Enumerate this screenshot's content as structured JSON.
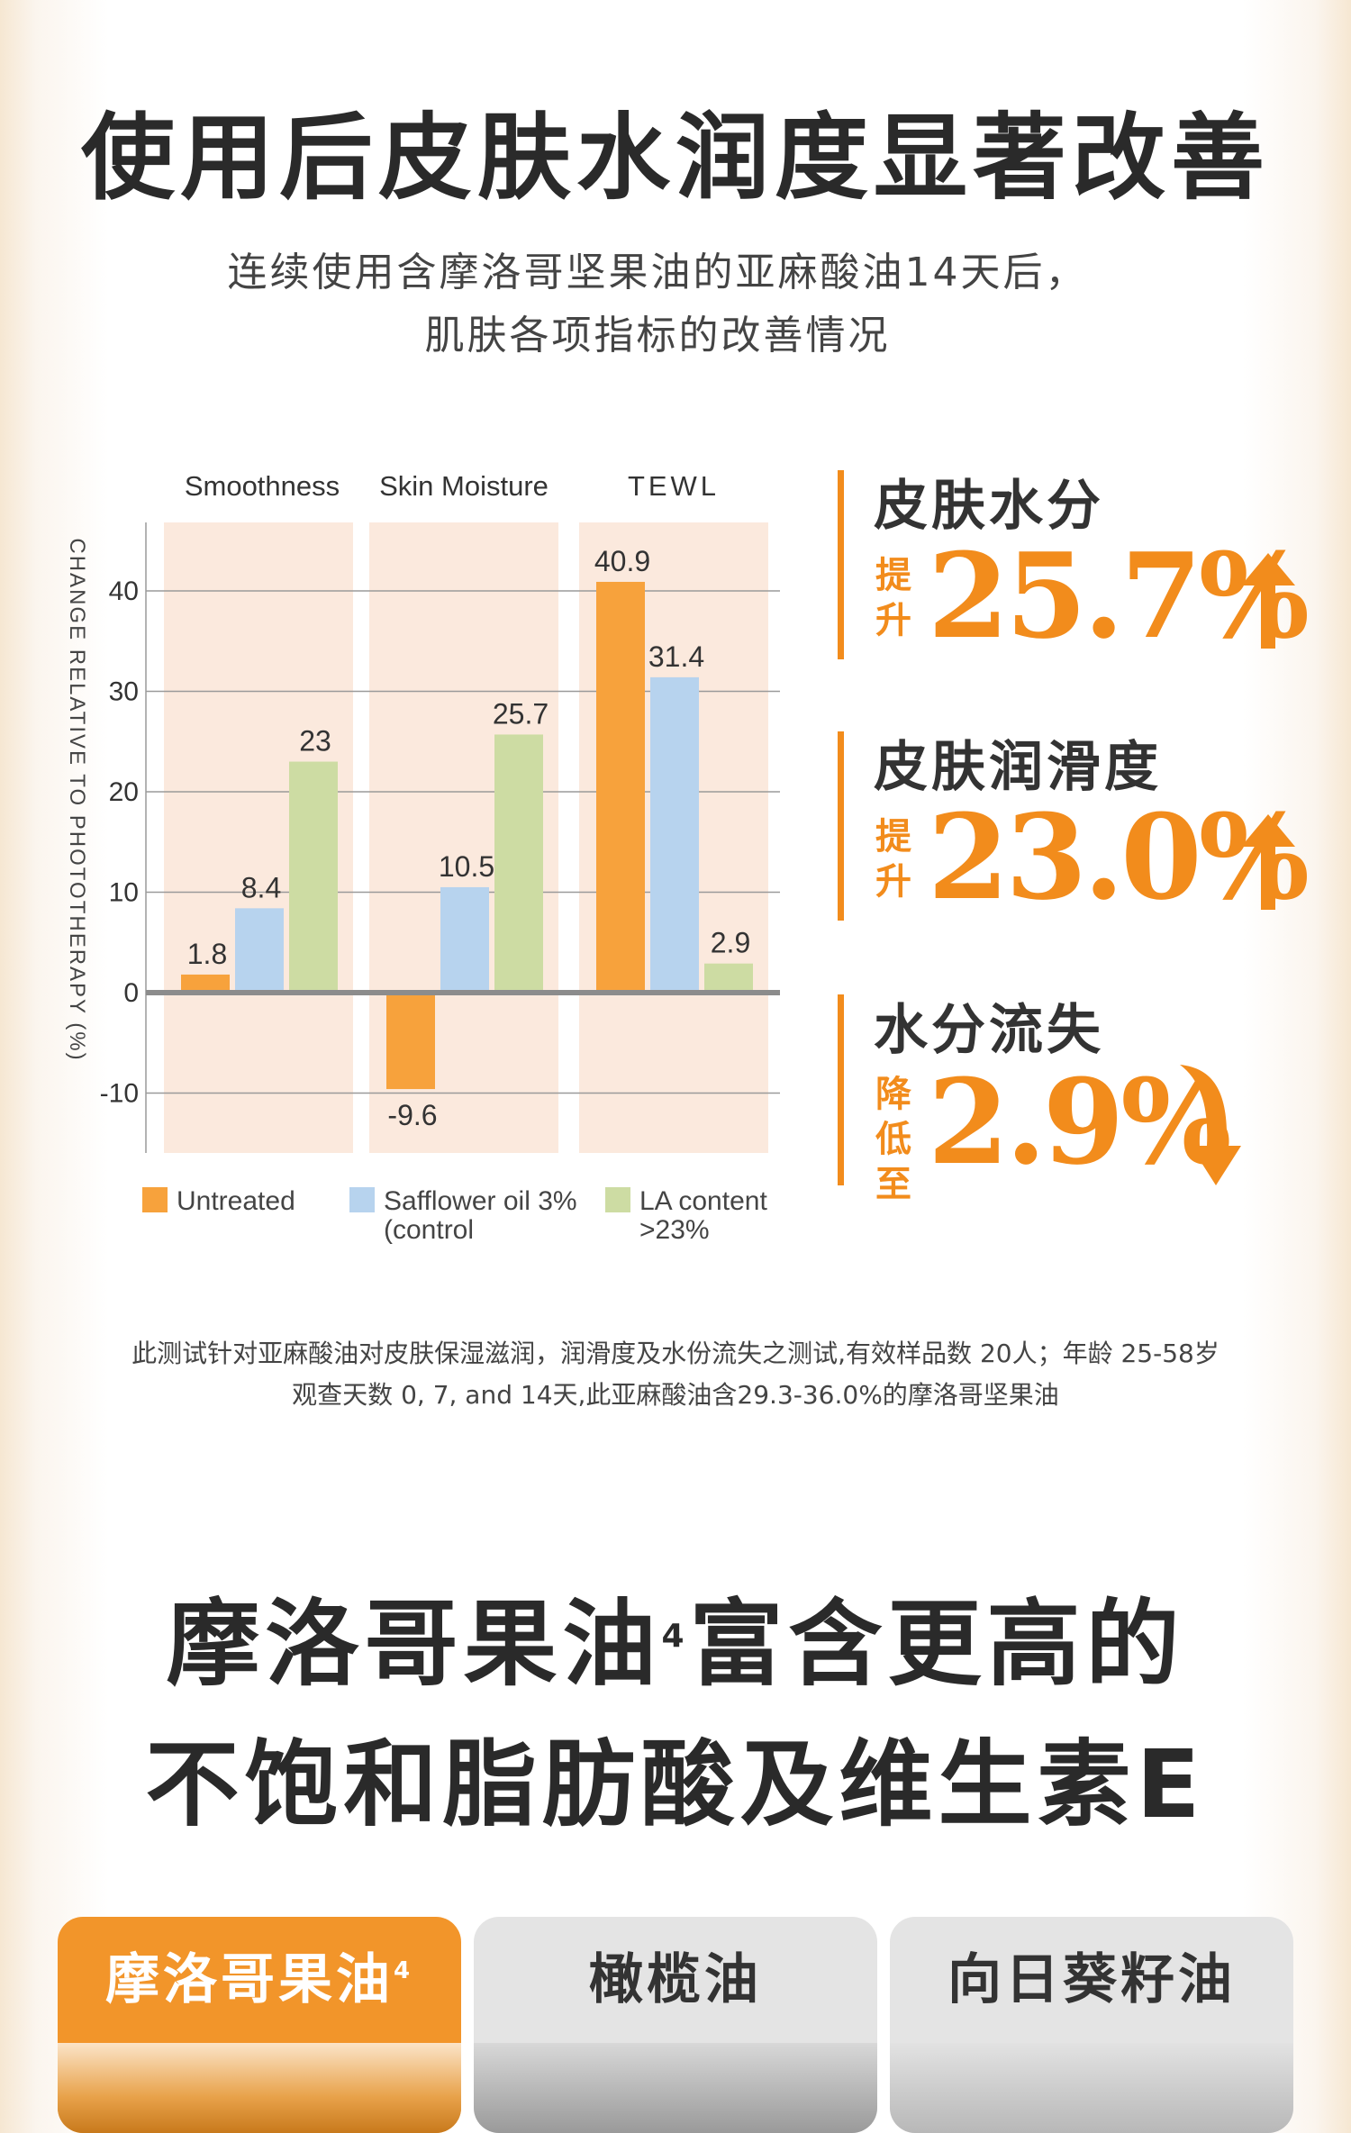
{
  "header": {
    "title": "使用后皮肤水润度显著改善",
    "subtitle_line1": "连续使用含摩洛哥坚果油的亚麻酸油14天后，",
    "subtitle_line2": "肌肤各项指标的改善情况"
  },
  "chart_data": {
    "type": "bar",
    "ylabel": "CHANGE RELATIVE TO PHOTOTHERAPY (%)",
    "categories": [
      "Smoothness",
      "Skin Moisture",
      "TEWL"
    ],
    "series": [
      {
        "name": "Untreated",
        "values": [
          1.8,
          -9.6,
          40.9
        ],
        "color": "#f7a23c"
      },
      {
        "name": "Safflower oil 3% (control",
        "values": [
          8.4,
          10.5,
          31.4
        ],
        "color": "#b7d3ee"
      },
      {
        "name": "LA content >23%",
        "values": [
          23,
          25.7,
          2.9
        ],
        "color": "#cddca3"
      }
    ],
    "value_labels": [
      [
        "1.8",
        "8.4",
        "23"
      ],
      [
        "-9.6",
        "10.5",
        "25.7"
      ],
      [
        "40.9",
        "31.4",
        "2.9"
      ]
    ],
    "yticks": [
      40,
      30,
      20,
      10,
      0,
      -10
    ],
    "ylim": [
      -15,
      46
    ],
    "legend": [
      {
        "line1": "Untreated",
        "line2": ""
      },
      {
        "line1": "Safflower oil 3%",
        "line2": "(control"
      },
      {
        "line1": "LA content",
        "line2": ">23%"
      }
    ],
    "legend_position": "bottom",
    "grid": true
  },
  "stats": [
    {
      "label": "皮肤水分",
      "verb": "提升",
      "value": "25.7%",
      "direction": "up"
    },
    {
      "label": "皮肤润滑度",
      "verb": "提升",
      "value": "23.0%",
      "direction": "up"
    },
    {
      "label": "水分流失",
      "verb": "降低至",
      "value": "2.9%",
      "direction": "down"
    }
  ],
  "footnote": {
    "line1": "此测试针对亚麻酸油对皮肤保湿滋润，润滑度及水份流失之测试,有效样品数 20人；年龄 25-58岁",
    "line2": "观查天数 0, 7, and 14天,此亚麻酸油含29.3-36.0%的摩洛哥坚果油"
  },
  "section2": {
    "title_line1_a": "摩洛哥果油",
    "title_sup": "4",
    "title_line1_b": "富含更高的",
    "title_line2": "不饱和脂肪酸及维生素E"
  },
  "cards": [
    {
      "label": "摩洛哥果油",
      "sup": "4",
      "active": true
    },
    {
      "label": "橄榄油",
      "sup": "",
      "active": false
    },
    {
      "label": "向日葵籽油",
      "sup": "",
      "active": false
    }
  ],
  "colors": {
    "accent": "#f28c1c",
    "panel": "#fbe9dd"
  }
}
